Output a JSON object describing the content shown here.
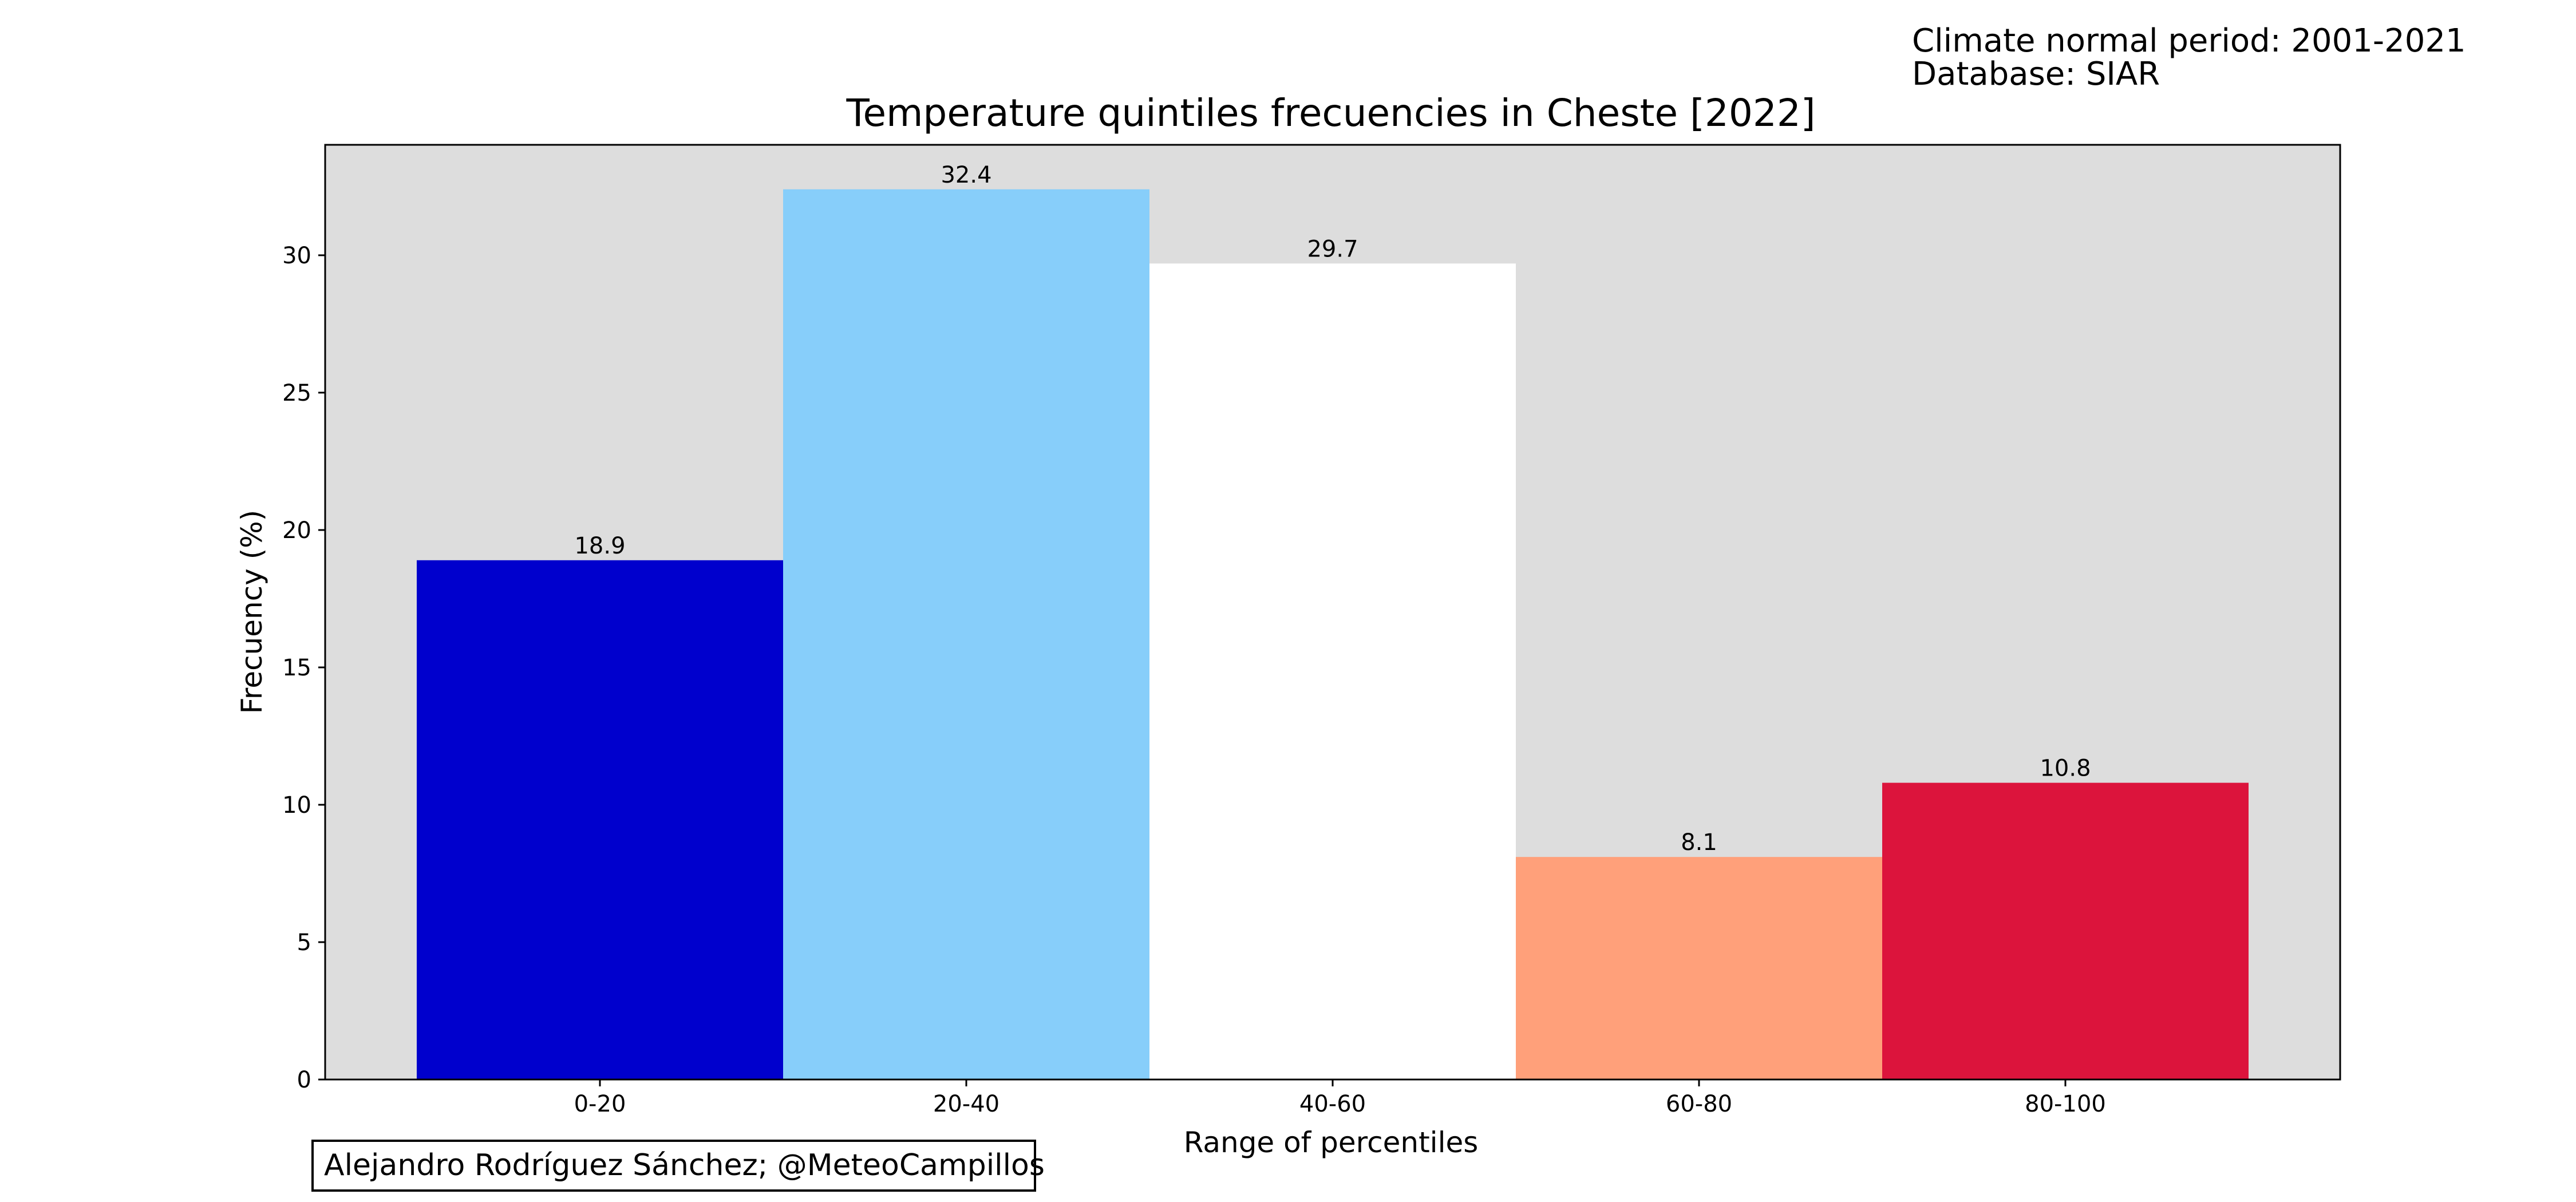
{
  "header_note": {
    "line1": "Climate normal period: 2001-2021",
    "line2": "Database: SIAR"
  },
  "credit": {
    "text": "Alejandro Rodríguez Sánchez; @MeteoCampillos"
  },
  "chart_data": {
    "type": "bar",
    "title": "Temperature quintiles frecuencies in Cheste [2022]",
    "xlabel": "Range of percentiles",
    "ylabel": "Frecuency (%)",
    "categories": [
      "0-20",
      "20-40",
      "40-60",
      "60-80",
      "80-100"
    ],
    "values": [
      18.9,
      32.4,
      29.7,
      8.1,
      10.8
    ],
    "value_labels": [
      "18.9",
      "32.4",
      "29.7",
      "8.1",
      "10.8"
    ],
    "colors": [
      "#0000CD",
      "#87CEFA",
      "#FFFFFF",
      "#FFA07A",
      "#DC143C"
    ],
    "yticks": [
      0,
      5,
      10,
      15,
      20,
      25,
      30
    ],
    "ylim": [
      0,
      34.02
    ],
    "plot_background": "#DDDDDD",
    "grid": false,
    "legend": "none"
  }
}
